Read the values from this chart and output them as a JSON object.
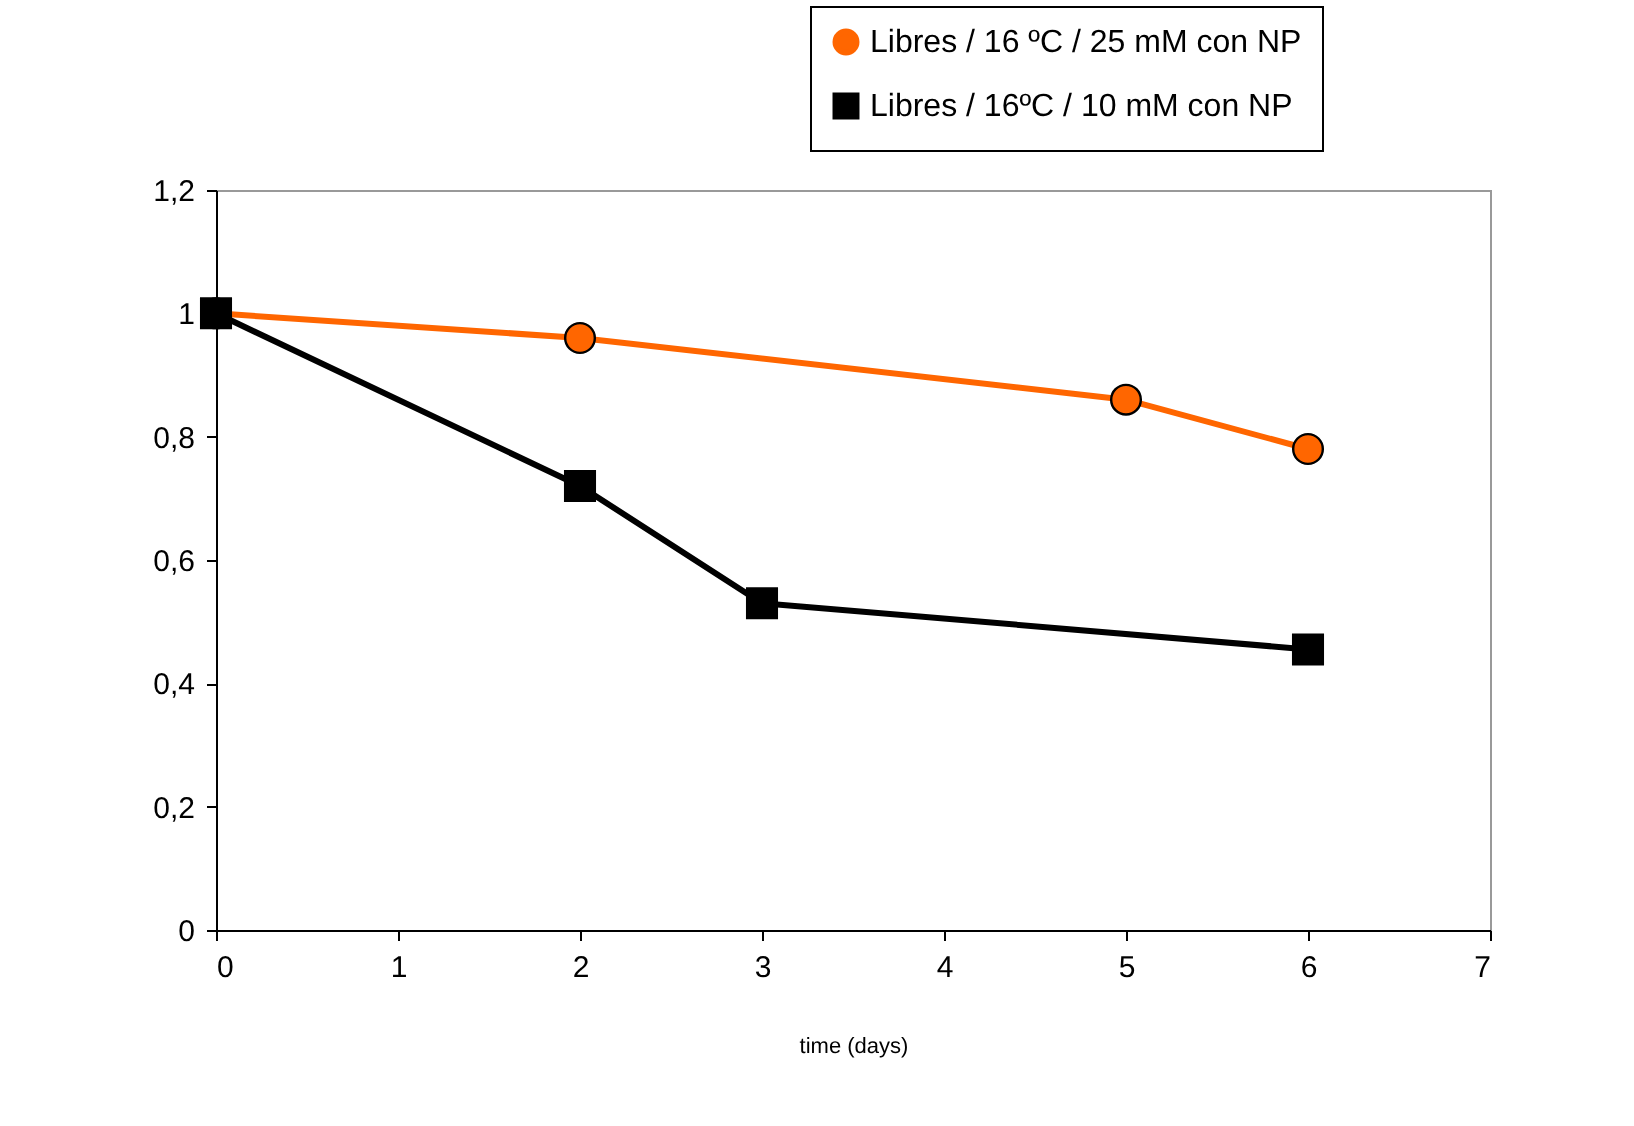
{
  "chart_data": {
    "type": "line",
    "xlabel": "time (days)",
    "legend": "top right",
    "grid": false,
    "xlim": [
      0,
      7
    ],
    "xticks": [
      0,
      1,
      2,
      3,
      4,
      5,
      6,
      7
    ],
    "ylim": [
      0,
      1.2
    ],
    "yticks": [
      0,
      {
        "value": 0.2,
        "label": "0,2"
      },
      {
        "value": 0.4,
        "label": "0,4"
      },
      {
        "value": 0.6,
        "label": "0,6"
      },
      {
        "value": 0.8,
        "label": "0,8"
      },
      1,
      {
        "value": 1.2,
        "label": "1,2"
      }
    ],
    "series": [
      {
        "name": "Libres / 16 ºC / 25 mM con NP",
        "color": "#ff6600",
        "marker": "circle",
        "x": [
          0,
          2,
          5,
          6
        ],
        "values": [
          1,
          0.96,
          0.86,
          0.78
        ]
      },
      {
        "name": "Libres / 16ºC / 10 mM con NP",
        "color": "#000000",
        "marker": "square",
        "x": [
          0,
          2,
          3,
          6
        ],
        "values": [
          1,
          0.72,
          0.53,
          0.455
        ]
      }
    ]
  }
}
